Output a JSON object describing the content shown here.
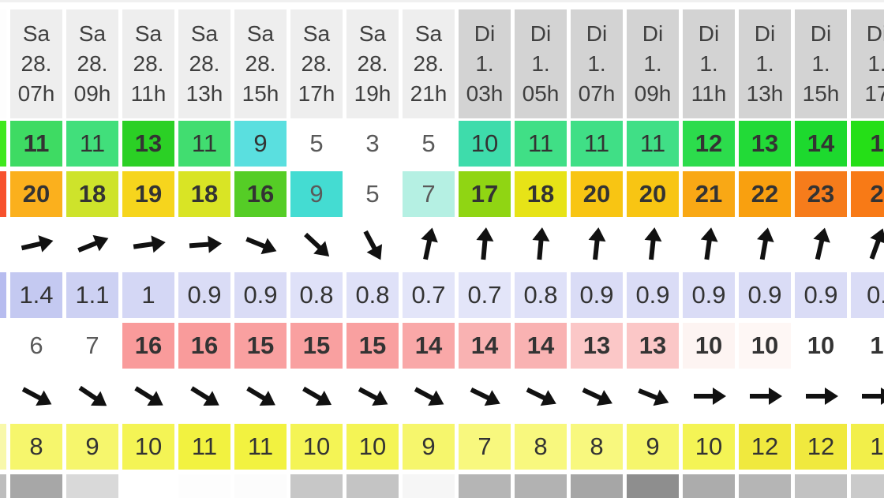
{
  "app": {
    "type": "marine-weather-superforecast-table"
  },
  "header": {
    "cells": [
      {
        "day": "",
        "date": "",
        "hour": "",
        "bg": "#fdfdfd"
      },
      {
        "day": "Sa",
        "date": "28.",
        "hour": "07h",
        "bg": "#eeeeee"
      },
      {
        "day": "Sa",
        "date": "28.",
        "hour": "09h",
        "bg": "#eeeeee"
      },
      {
        "day": "Sa",
        "date": "28.",
        "hour": "11h",
        "bg": "#eeeeee"
      },
      {
        "day": "Sa",
        "date": "28.",
        "hour": "13h",
        "bg": "#eeeeee"
      },
      {
        "day": "Sa",
        "date": "28.",
        "hour": "15h",
        "bg": "#eeeeee"
      },
      {
        "day": "Sa",
        "date": "28.",
        "hour": "17h",
        "bg": "#eeeeee"
      },
      {
        "day": "Sa",
        "date": "28.",
        "hour": "19h",
        "bg": "#eeeeee"
      },
      {
        "day": "Sa",
        "date": "28.",
        "hour": "21h",
        "bg": "#eeeeee"
      },
      {
        "day": "Di",
        "date": "1.",
        "hour": "03h",
        "bg": "#d3d3d3"
      },
      {
        "day": "Di",
        "date": "1.",
        "hour": "05h",
        "bg": "#d3d3d3"
      },
      {
        "day": "Di",
        "date": "1.",
        "hour": "07h",
        "bg": "#d3d3d3"
      },
      {
        "day": "Di",
        "date": "1.",
        "hour": "09h",
        "bg": "#d3d3d3"
      },
      {
        "day": "Di",
        "date": "1.",
        "hour": "11h",
        "bg": "#d3d3d3"
      },
      {
        "day": "Di",
        "date": "1.",
        "hour": "13h",
        "bg": "#d3d3d3"
      },
      {
        "day": "Di",
        "date": "1.",
        "hour": "15h",
        "bg": "#d3d3d3"
      },
      {
        "day": "Di",
        "date": "1.",
        "hour": "17",
        "bg": "#d3d3d3"
      }
    ]
  },
  "rows": {
    "wind_speed": {
      "cells": [
        {
          "v": "",
          "bg": "#3fe81c"
        },
        {
          "v": "11",
          "bg": "#3edb63",
          "bold": true
        },
        {
          "v": "11",
          "bg": "#41df7b"
        },
        {
          "v": "13",
          "bg": "#2bd025",
          "bold": true
        },
        {
          "v": "11",
          "bg": "#41dd70"
        },
        {
          "v": "9",
          "bg": "#5adfdf"
        },
        {
          "v": "5",
          "bg": "",
          "light": true
        },
        {
          "v": "3",
          "bg": "",
          "light": true
        },
        {
          "v": "5",
          "bg": "",
          "light": true
        },
        {
          "v": "10",
          "bg": "#3edcab"
        },
        {
          "v": "11",
          "bg": "#40df86"
        },
        {
          "v": "11",
          "bg": "#40df86"
        },
        {
          "v": "11",
          "bg": "#40df86"
        },
        {
          "v": "12",
          "bg": "#2cdc4c",
          "bold": true
        },
        {
          "v": "13",
          "bg": "#22da37",
          "bold": true
        },
        {
          "v": "14",
          "bg": "#1dd92e",
          "bold": true
        },
        {
          "v": "1",
          "bg": "#25df17",
          "bold": true
        }
      ]
    },
    "wind_gusts": {
      "cells": [
        {
          "v": "",
          "bg": "#f7512d"
        },
        {
          "v": "20",
          "bg": "#fbb01d",
          "bold": true
        },
        {
          "v": "18",
          "bg": "#cee32b",
          "bold": true
        },
        {
          "v": "19",
          "bg": "#f6d51d",
          "bold": true
        },
        {
          "v": "18",
          "bg": "#d9e425",
          "bold": true
        },
        {
          "v": "16",
          "bg": "#55cd26",
          "bold": true
        },
        {
          "v": "9",
          "bg": "#44dcd2",
          "light": true
        },
        {
          "v": "5",
          "bg": "",
          "light": true
        },
        {
          "v": "7",
          "bg": "#b5f0e3",
          "light": true
        },
        {
          "v": "17",
          "bg": "#90d513",
          "bold": true
        },
        {
          "v": "18",
          "bg": "#e7e317",
          "bold": true
        },
        {
          "v": "20",
          "bg": "#f8c513",
          "bold": true
        },
        {
          "v": "20",
          "bg": "#f8c513",
          "bold": true
        },
        {
          "v": "21",
          "bg": "#f9a815",
          "bold": true
        },
        {
          "v": "22",
          "bg": "#f9a00f",
          "bold": true
        },
        {
          "v": "23",
          "bg": "#f67c1b",
          "bold": true
        },
        {
          "v": "2",
          "bg": "#f87a16",
          "bold": true
        }
      ]
    },
    "wind_direction": {
      "cells": [
        {
          "deg": null
        },
        {
          "deg": -13
        },
        {
          "deg": -22
        },
        {
          "deg": -8
        },
        {
          "deg": -4
        },
        {
          "deg": 22
        },
        {
          "deg": 43
        },
        {
          "deg": 62
        },
        {
          "deg": -78
        },
        {
          "deg": -85
        },
        {
          "deg": -85
        },
        {
          "deg": -84
        },
        {
          "deg": -84
        },
        {
          "deg": -82
        },
        {
          "deg": -80
        },
        {
          "deg": -77
        },
        {
          "deg": -70
        }
      ]
    },
    "wave_height": {
      "cells": [
        {
          "v": "",
          "bg": "#b7bcef"
        },
        {
          "v": "1.4",
          "bg": "#c4c9f1"
        },
        {
          "v": "1.1",
          "bg": "#cdd1f3"
        },
        {
          "v": "1",
          "bg": "#d4d7f5"
        },
        {
          "v": "0.9",
          "bg": "#dadcf6"
        },
        {
          "v": "0.9",
          "bg": "#dadcf6"
        },
        {
          "v": "0.8",
          "bg": "#dfe1f8"
        },
        {
          "v": "0.8",
          "bg": "#dfe1f8"
        },
        {
          "v": "0.7",
          "bg": "#e3e5f9"
        },
        {
          "v": "0.7",
          "bg": "#e3e5f9"
        },
        {
          "v": "0.8",
          "bg": "#dfe1f8"
        },
        {
          "v": "0.9",
          "bg": "#dadcf6"
        },
        {
          "v": "0.9",
          "bg": "#dadcf6"
        },
        {
          "v": "0.9",
          "bg": "#dadcf6"
        },
        {
          "v": "0.9",
          "bg": "#dadcf6"
        },
        {
          "v": "0.9",
          "bg": "#dadcf6"
        },
        {
          "v": "0.",
          "bg": "#dadcf6"
        }
      ]
    },
    "wave_period": {
      "cells": [
        {
          "v": "",
          "bg": ""
        },
        {
          "v": "6",
          "bg": "",
          "light": true
        },
        {
          "v": "7",
          "bg": "",
          "light": true
        },
        {
          "v": "16",
          "bg": "#f99b9b",
          "bold": true
        },
        {
          "v": "16",
          "bg": "#f99b9b",
          "bold": true
        },
        {
          "v": "15",
          "bg": "#f9a0a0",
          "bold": true
        },
        {
          "v": "15",
          "bg": "#f9a0a0",
          "bold": true
        },
        {
          "v": "15",
          "bg": "#f9a0a0",
          "bold": true
        },
        {
          "v": "14",
          "bg": "#f9a8a8",
          "bold": true
        },
        {
          "v": "14",
          "bg": "#f9b2b2",
          "bold": true
        },
        {
          "v": "14",
          "bg": "#f9b2b2",
          "bold": true
        },
        {
          "v": "13",
          "bg": "#fbc7c7",
          "bold": true
        },
        {
          "v": "13",
          "bg": "#fbc7c7",
          "bold": true
        },
        {
          "v": "10",
          "bg": "#fdf4f2",
          "bold": true
        },
        {
          "v": "10",
          "bg": "#fef7f5",
          "bold": true
        },
        {
          "v": "10",
          "bg": "",
          "bold": true
        },
        {
          "v": "1",
          "bg": "",
          "bold": true
        }
      ]
    },
    "wave_direction": {
      "cells": [
        {
          "deg": null
        },
        {
          "deg": 28
        },
        {
          "deg": 34
        },
        {
          "deg": 32
        },
        {
          "deg": 32
        },
        {
          "deg": 31
        },
        {
          "deg": 30
        },
        {
          "deg": 28
        },
        {
          "deg": 28
        },
        {
          "deg": 26
        },
        {
          "deg": 26
        },
        {
          "deg": 25
        },
        {
          "deg": 22
        },
        {
          "deg": 0
        },
        {
          "deg": 0
        },
        {
          "deg": 0
        },
        {
          "deg": 0
        }
      ]
    },
    "temperature": {
      "cells": [
        {
          "v": "",
          "bg": "#f8f8aa"
        },
        {
          "v": "8",
          "bg": "#f6f66c"
        },
        {
          "v": "9",
          "bg": "#f6f66c"
        },
        {
          "v": "10",
          "bg": "#f4f455"
        },
        {
          "v": "11",
          "bg": "#f2f240"
        },
        {
          "v": "11",
          "bg": "#f2f240"
        },
        {
          "v": "10",
          "bg": "#f4f455"
        },
        {
          "v": "10",
          "bg": "#f4f455"
        },
        {
          "v": "9",
          "bg": "#f6f66c"
        },
        {
          "v": "7",
          "bg": "#f8f87e"
        },
        {
          "v": "8",
          "bg": "#f8f87e"
        },
        {
          "v": "8",
          "bg": "#f8f87e"
        },
        {
          "v": "9",
          "bg": "#f6f66c"
        },
        {
          "v": "10",
          "bg": "#f4f455"
        },
        {
          "v": "12",
          "bg": "#f0e93e"
        },
        {
          "v": "12",
          "bg": "#f0e93e"
        },
        {
          "v": "1",
          "bg": "#f2ef4a"
        }
      ]
    },
    "next_row_partial": {
      "cells": [
        {
          "bg": "#bdbdbd"
        },
        {
          "bg": "#a7a7a7"
        },
        {
          "bg": "#d9d9d9"
        },
        {
          "bg": "#ffffff"
        },
        {
          "bg": "#fdfdfd"
        },
        {
          "bg": "#fcfcfc"
        },
        {
          "bg": "#c7c7c7"
        },
        {
          "bg": "#c4c4c4"
        },
        {
          "bg": "#f6f6f6"
        },
        {
          "bg": "#b5b5b5"
        },
        {
          "bg": "#b2b2b2"
        },
        {
          "bg": "#a6a6a6"
        },
        {
          "bg": "#8e8e8e"
        },
        {
          "bg": "#acacac"
        },
        {
          "bg": "#b5b5b5"
        },
        {
          "bg": "#c2c2c2"
        },
        {
          "bg": "#cacaca"
        }
      ]
    }
  },
  "icons": {
    "arrow": "direction-arrow-icon",
    "arrow_color": "#111111"
  }
}
